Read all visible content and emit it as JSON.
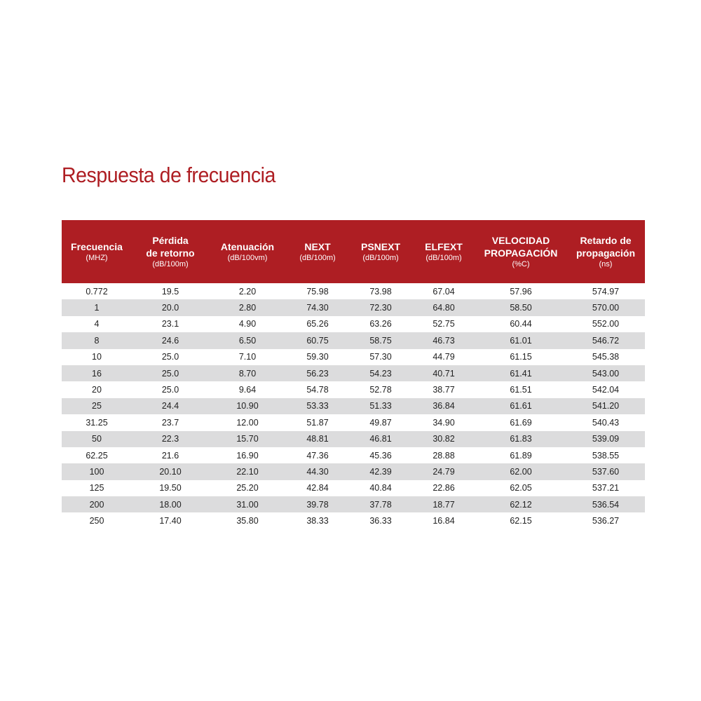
{
  "title": "Respuesta de frecuencia",
  "colors": {
    "accent": "#ae1e23",
    "stripe": "#dcdcdd",
    "header_text": "#ffffff"
  },
  "table": {
    "columns": [
      {
        "name": "Frecuencia",
        "unit": "(MHZ)"
      },
      {
        "name": "Pérdida\nde retorno",
        "unit": "(dB/100m)"
      },
      {
        "name": "Atenuación",
        "unit": "(dB/100vm)"
      },
      {
        "name": "NEXT",
        "unit": "(dB/100m)"
      },
      {
        "name": "PSNEXT",
        "unit": "(dB/100m)"
      },
      {
        "name": "ELFEXT",
        "unit": "(dB/100m)"
      },
      {
        "name": "VELOCIDAD\nPROPAGACIÓN",
        "unit": "(%C)"
      },
      {
        "name": "Retardo de\npropagación",
        "unit": "(ns)"
      }
    ],
    "rows": [
      [
        "0.772",
        "19.5",
        "2.20",
        "75.98",
        "73.98",
        "67.04",
        "57.96",
        "574.97"
      ],
      [
        "1",
        "20.0",
        "2.80",
        "74.30",
        "72.30",
        "64.80",
        "58.50",
        "570.00"
      ],
      [
        "4",
        "23.1",
        "4.90",
        "65.26",
        "63.26",
        "52.75",
        "60.44",
        "552.00"
      ],
      [
        "8",
        "24.6",
        "6.50",
        "60.75",
        "58.75",
        "46.73",
        "61.01",
        "546.72"
      ],
      [
        "10",
        "25.0",
        "7.10",
        "59.30",
        "57.30",
        "44.79",
        "61.15",
        "545.38"
      ],
      [
        "16",
        "25.0",
        "8.70",
        "56.23",
        "54.23",
        "40.71",
        "61.41",
        "543.00"
      ],
      [
        "20",
        "25.0",
        "9.64",
        "54.78",
        "52.78",
        "38.77",
        "61.51",
        "542.04"
      ],
      [
        "25",
        "24.4",
        "10.90",
        "53.33",
        "51.33",
        "36.84",
        "61.61",
        "541.20"
      ],
      [
        "31.25",
        "23.7",
        "12.00",
        "51.87",
        "49.87",
        "34.90",
        "61.69",
        "540.43"
      ],
      [
        "50",
        "22.3",
        "15.70",
        "48.81",
        "46.81",
        "30.82",
        "61.83",
        "539.09"
      ],
      [
        "62.25",
        "21.6",
        "16.90",
        "47.36",
        "45.36",
        "28.88",
        "61.89",
        "538.55"
      ],
      [
        "100",
        "20.10",
        "22.10",
        "44.30",
        "42.39",
        "24.79",
        "62.00",
        "537.60"
      ],
      [
        "125",
        "19.50",
        "25.20",
        "42.84",
        "40.84",
        "22.86",
        "62.05",
        "537.21"
      ],
      [
        "200",
        "18.00",
        "31.00",
        "39.78",
        "37.78",
        "18.77",
        "62.12",
        "536.54"
      ],
      [
        "250",
        "17.40",
        "35.80",
        "38.33",
        "36.33",
        "16.84",
        "62.15",
        "536.27"
      ]
    ]
  }
}
